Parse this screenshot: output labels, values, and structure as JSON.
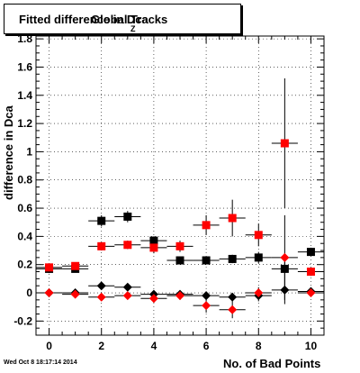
{
  "title": {
    "text_a": "Fitted difference in Dca",
    "subscript": "Z",
    "text_b": "Global Tracks"
  },
  "footer": {
    "date": "Wed Oct  8 18:17:14 2014"
  },
  "colors": {
    "series_a": "#000000",
    "series_b": "#ff0000",
    "grid": "#000000",
    "frame": "#000000"
  },
  "chart_data": {
    "type": "scatter",
    "title": "Fitted difference in Dca Global Tracks",
    "xlabel": "No. of Bad Points",
    "ylabel": "difference in Dca",
    "xlim": [
      -0.5,
      10.5
    ],
    "ylim": [
      -0.3,
      1.82
    ],
    "grid": true,
    "x_ticks": [
      0,
      2,
      4,
      6,
      8,
      10
    ],
    "x_tick_labels": [
      "0",
      "2",
      "4",
      "6",
      "8",
      "10"
    ],
    "y_ticks": [
      -0.2,
      0,
      0.2,
      0.4,
      0.6,
      0.8,
      1,
      1.2,
      1.4,
      1.6,
      1.8
    ],
    "y_tick_labels": [
      "-0.2",
      "0",
      "0.2",
      "0.4",
      "0.6",
      "0.8",
      "1",
      "1.2",
      "1.4",
      "1.6",
      "1.8"
    ],
    "series": [
      {
        "marker": "square",
        "color": "#000000",
        "x": [
          0,
          1,
          2,
          3,
          4,
          5,
          6,
          7,
          8,
          9,
          10
        ],
        "y": [
          0.17,
          0.17,
          0.51,
          0.54,
          0.37,
          0.23,
          0.23,
          0.24,
          0.25,
          0.17,
          0.29
        ],
        "yerr": [
          0.03,
          0.02,
          0.04,
          0.04,
          0.03,
          0.02,
          0.02,
          0.03,
          0.04,
          0.05,
          0.03
        ]
      },
      {
        "marker": "square",
        "color": "#ff0000",
        "x": [
          0,
          1,
          2,
          3,
          4,
          5,
          6,
          7,
          8,
          9,
          10
        ],
        "y": [
          0.18,
          0.19,
          0.33,
          0.34,
          0.32,
          0.33,
          0.48,
          0.53,
          0.41,
          1.06,
          0.15
        ],
        "yerr": [
          0.02,
          0.02,
          0.03,
          0.03,
          0.04,
          0.04,
          0.07,
          0.13,
          0.08,
          0.46,
          0.03
        ]
      },
      {
        "marker": "diamond",
        "color": "#000000",
        "x": [
          0,
          1,
          2,
          3,
          4,
          5,
          6,
          7,
          8,
          9,
          10
        ],
        "y": [
          0.0,
          0.0,
          0.05,
          0.04,
          -0.01,
          -0.01,
          -0.02,
          -0.03,
          -0.02,
          0.02,
          0.01
        ],
        "yerr": [
          0.01,
          0.01,
          0.02,
          0.02,
          0.02,
          0.02,
          0.03,
          0.03,
          0.04,
          0.1,
          0.01
        ]
      },
      {
        "marker": "diamond",
        "color": "#ff0000",
        "x": [
          0,
          1,
          2,
          3,
          4,
          5,
          6,
          7,
          8,
          9,
          10
        ],
        "y": [
          0.0,
          -0.01,
          -0.03,
          -0.02,
          -0.04,
          -0.02,
          -0.09,
          -0.12,
          0.0,
          0.25,
          0.0
        ],
        "yerr": [
          0.01,
          0.01,
          0.02,
          0.02,
          0.03,
          0.03,
          0.05,
          0.06,
          0.04,
          0.3,
          0.01
        ]
      }
    ]
  }
}
